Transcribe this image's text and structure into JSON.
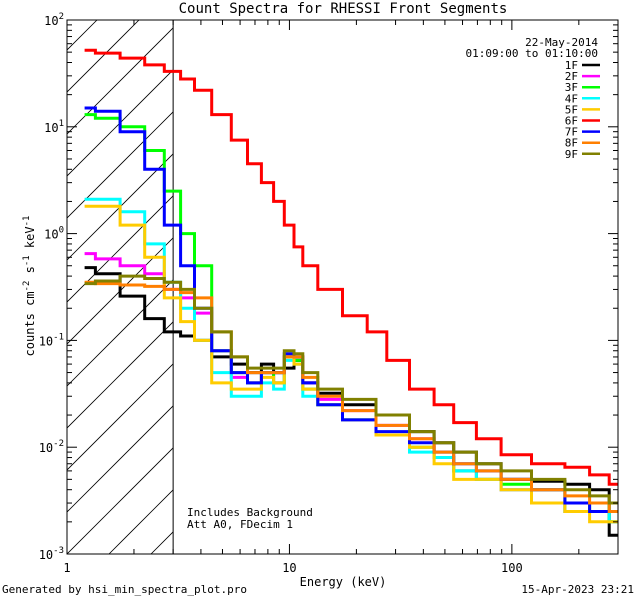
{
  "footer": {
    "generated_by": "Generated by hsi_min_spectra_plot.pro",
    "timestamp": "15-Apr-2023 23:21"
  },
  "chart_data": {
    "type": "line",
    "title": "Count Spectra for RHESSI Front Segments",
    "xlabel": "Energy (keV)",
    "ylabel_parts": [
      "counts cm",
      "-2",
      " s",
      "-1",
      " keV",
      "-1"
    ],
    "xscale": "log",
    "yscale": "log",
    "xlim": [
      1,
      300
    ],
    "ylim": [
      0.001,
      100
    ],
    "x_tick_labels": [
      {
        "value": 1,
        "label": "1"
      },
      {
        "value": 10,
        "label": "10"
      },
      {
        "value": 100,
        "label": "100"
      }
    ],
    "y_tick_labels": [
      {
        "value": 0.001,
        "base": "10",
        "exp": "-3"
      },
      {
        "value": 0.01,
        "base": "10",
        "exp": "-2"
      },
      {
        "value": 0.1,
        "base": "10",
        "exp": "-1"
      },
      {
        "value": 1,
        "base": "10",
        "exp": "0"
      },
      {
        "value": 10,
        "base": "10",
        "exp": "1"
      },
      {
        "value": 100,
        "base": "10",
        "exp": "2"
      }
    ],
    "legend_position": "top-right",
    "info": {
      "date": "22-May-2014",
      "time_range": "01:09:00 to 01:10:00"
    },
    "annotations": [
      "Includes Background",
      "Att A0, FDecim 1"
    ],
    "hatched_region": {
      "x_start": 1,
      "x_end": 3
    },
    "series": [
      {
        "name": "1F",
        "color": "#000000",
        "x": [
          1.2,
          1.5,
          2.0,
          2.5,
          3.0,
          3.5,
          4.0,
          5.0,
          6.0,
          7.0,
          8.0,
          9.0,
          10.0,
          11.0,
          12.0,
          15.0,
          20.0,
          30.0,
          40.0,
          50.0,
          60.0,
          80.0,
          100.0,
          150.0,
          200.0,
          250.0,
          300.0
        ],
        "values": [
          0.48,
          0.42,
          0.26,
          0.16,
          0.12,
          0.11,
          0.1,
          0.07,
          0.06,
          0.05,
          0.06,
          0.05,
          0.055,
          0.065,
          0.04,
          0.032,
          0.025,
          0.02,
          0.014,
          0.011,
          0.009,
          0.007,
          0.005,
          0.0048,
          0.0045,
          0.004,
          0.0015
        ]
      },
      {
        "name": "2F",
        "color": "#ff00ff",
        "x": [
          1.2,
          1.5,
          2.0,
          2.5,
          3.0,
          3.5,
          4.0,
          5.0,
          6.0,
          7.0,
          8.0,
          9.0,
          10.0,
          11.0,
          12.0,
          15.0,
          20.0,
          30.0,
          40.0,
          50.0,
          60.0,
          80.0,
          100.0,
          150.0,
          200.0,
          250.0,
          300.0
        ],
        "values": [
          0.65,
          0.58,
          0.5,
          0.42,
          0.3,
          0.25,
          0.18,
          0.08,
          0.045,
          0.04,
          0.05,
          0.04,
          0.07,
          0.07,
          0.04,
          0.028,
          0.022,
          0.016,
          0.012,
          0.008,
          0.006,
          0.005,
          0.004,
          0.003,
          0.0025,
          0.0025,
          0.002
        ]
      },
      {
        "name": "3F",
        "color": "#00ff00",
        "x": [
          1.2,
          1.5,
          2.0,
          2.5,
          3.0,
          3.5,
          4.0,
          5.0,
          6.0,
          7.0,
          8.0,
          9.0,
          10.0,
          11.0,
          12.0,
          15.0,
          20.0,
          30.0,
          40.0,
          50.0,
          60.0,
          80.0,
          100.0,
          150.0,
          200.0,
          250.0,
          300.0
        ],
        "values": [
          13.0,
          12.0,
          10.0,
          6.0,
          2.5,
          1.0,
          0.5,
          0.08,
          0.05,
          0.04,
          0.05,
          0.04,
          0.07,
          0.065,
          0.035,
          0.025,
          0.018,
          0.013,
          0.01,
          0.008,
          0.006,
          0.005,
          0.0045,
          0.004,
          0.0025,
          0.003,
          0.002
        ]
      },
      {
        "name": "4F",
        "color": "#00ffff",
        "x": [
          1.2,
          1.5,
          2.0,
          2.5,
          3.0,
          3.5,
          4.0,
          5.0,
          6.0,
          7.0,
          8.0,
          9.0,
          10.0,
          11.0,
          12.0,
          15.0,
          20.0,
          30.0,
          40.0,
          50.0,
          60.0,
          80.0,
          100.0,
          150.0,
          200.0,
          250.0,
          300.0
        ],
        "values": [
          2.1,
          2.1,
          1.6,
          0.8,
          0.35,
          0.2,
          0.1,
          0.05,
          0.03,
          0.03,
          0.04,
          0.035,
          0.065,
          0.06,
          0.03,
          0.025,
          0.018,
          0.013,
          0.009,
          0.008,
          0.006,
          0.005,
          0.004,
          0.003,
          0.0025,
          0.0025,
          0.002
        ]
      },
      {
        "name": "5F",
        "color": "#ffcc00",
        "x": [
          1.2,
          1.5,
          2.0,
          2.5,
          3.0,
          3.5,
          4.0,
          5.0,
          6.0,
          7.0,
          8.0,
          9.0,
          10.0,
          11.0,
          12.0,
          15.0,
          20.0,
          30.0,
          40.0,
          50.0,
          60.0,
          80.0,
          100.0,
          150.0,
          200.0,
          250.0,
          300.0
        ],
        "values": [
          1.8,
          1.8,
          1.2,
          0.6,
          0.25,
          0.15,
          0.1,
          0.04,
          0.035,
          0.035,
          0.045,
          0.04,
          0.07,
          0.06,
          0.035,
          0.025,
          0.018,
          0.013,
          0.01,
          0.007,
          0.005,
          0.005,
          0.004,
          0.003,
          0.0025,
          0.002,
          0.002
        ]
      },
      {
        "name": "6F",
        "color": "#ff0000",
        "x": [
          1.2,
          1.5,
          2.0,
          2.5,
          3.0,
          3.5,
          4.0,
          5.0,
          6.0,
          7.0,
          8.0,
          9.0,
          10.0,
          11.0,
          12.0,
          15.0,
          20.0,
          25.0,
          30.0,
          40.0,
          50.0,
          60.0,
          80.0,
          100.0,
          150.0,
          200.0,
          250.0,
          300.0
        ],
        "values": [
          52.0,
          49.0,
          44.0,
          38.0,
          33.0,
          28.0,
          22.0,
          13.0,
          7.5,
          4.5,
          3.0,
          2.0,
          1.2,
          0.75,
          0.5,
          0.3,
          0.17,
          0.12,
          0.065,
          0.035,
          0.025,
          0.017,
          0.012,
          0.0085,
          0.007,
          0.0065,
          0.0055,
          0.0045
        ]
      },
      {
        "name": "7F",
        "color": "#0000ff",
        "x": [
          1.2,
          1.5,
          2.0,
          2.5,
          3.0,
          3.5,
          4.0,
          5.0,
          6.0,
          7.0,
          8.0,
          9.0,
          10.0,
          11.0,
          12.0,
          15.0,
          20.0,
          30.0,
          40.0,
          50.0,
          60.0,
          80.0,
          100.0,
          150.0,
          200.0,
          250.0,
          300.0
        ],
        "values": [
          15.0,
          14.0,
          9.0,
          4.0,
          1.2,
          0.5,
          0.2,
          0.08,
          0.05,
          0.04,
          0.05,
          0.05,
          0.075,
          0.07,
          0.04,
          0.025,
          0.018,
          0.014,
          0.011,
          0.009,
          0.007,
          0.006,
          0.005,
          0.004,
          0.003,
          0.0025,
          0.0025
        ]
      },
      {
        "name": "8F",
        "color": "#ff7f00",
        "x": [
          1.2,
          1.5,
          2.0,
          2.5,
          3.0,
          3.5,
          4.0,
          5.0,
          6.0,
          7.0,
          8.0,
          9.0,
          10.0,
          11.0,
          12.0,
          15.0,
          20.0,
          30.0,
          40.0,
          50.0,
          60.0,
          80.0,
          100.0,
          150.0,
          200.0,
          250.0,
          300.0
        ],
        "values": [
          0.35,
          0.34,
          0.33,
          0.32,
          0.3,
          0.28,
          0.25,
          0.12,
          0.07,
          0.05,
          0.05,
          0.05,
          0.07,
          0.07,
          0.045,
          0.03,
          0.022,
          0.016,
          0.012,
          0.009,
          0.007,
          0.006,
          0.005,
          0.004,
          0.0035,
          0.003,
          0.0025
        ]
      },
      {
        "name": "9F",
        "color": "#808000",
        "x": [
          1.2,
          1.5,
          2.0,
          2.5,
          3.0,
          3.5,
          4.0,
          5.0,
          6.0,
          7.0,
          8.0,
          9.0,
          10.0,
          11.0,
          12.0,
          15.0,
          20.0,
          30.0,
          40.0,
          50.0,
          60.0,
          80.0,
          100.0,
          150.0,
          200.0,
          250.0,
          300.0
        ],
        "values": [
          0.34,
          0.36,
          0.4,
          0.38,
          0.35,
          0.3,
          0.2,
          0.12,
          0.07,
          0.055,
          0.055,
          0.055,
          0.08,
          0.075,
          0.05,
          0.035,
          0.028,
          0.02,
          0.014,
          0.011,
          0.009,
          0.007,
          0.006,
          0.005,
          0.004,
          0.0035,
          0.003
        ]
      }
    ]
  }
}
